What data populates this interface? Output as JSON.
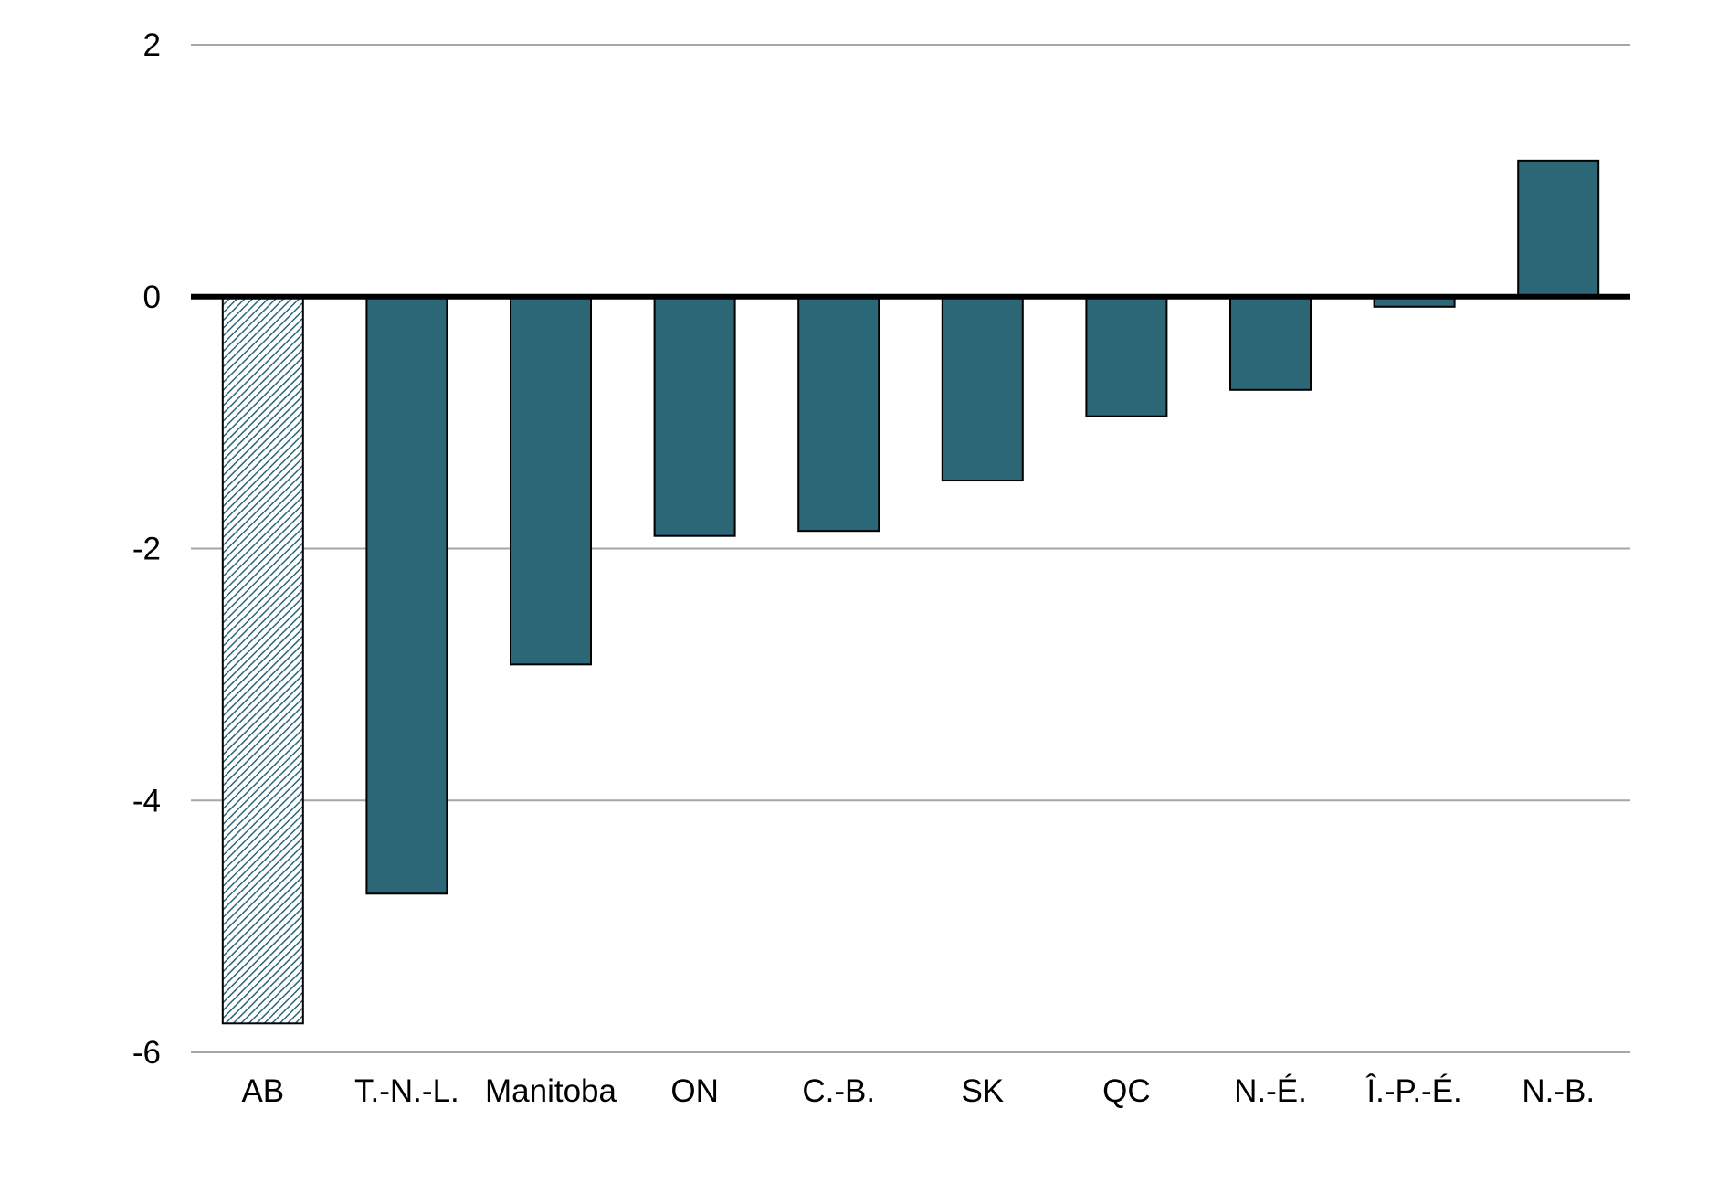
{
  "chart_data": {
    "type": "bar",
    "title": "",
    "xlabel": "",
    "ylabel": "",
    "categories": [
      "AB",
      "T.-N.-L.",
      "Manitoba",
      "ON",
      "C.-B.",
      "SK",
      "QC",
      "N.-É.",
      "Î.-P.-É.",
      "N.-B."
    ],
    "values": [
      -5.77,
      -4.74,
      -2.92,
      -1.9,
      -1.86,
      -1.46,
      -0.95,
      -0.74,
      -0.08,
      1.08
    ],
    "bar_styles": [
      "hatched",
      "solid",
      "solid",
      "solid",
      "solid",
      "solid",
      "solid",
      "solid",
      "solid",
      "solid"
    ],
    "ylim": [
      -6,
      2
    ],
    "yticks": [
      2,
      0,
      -2,
      -4,
      -6
    ],
    "ytick_labels": [
      "2",
      "0",
      "-2",
      "-4",
      "-6"
    ],
    "grid": true,
    "legend": "none",
    "colors": {
      "bar_fill": "#2b6777",
      "hatch_line": "#2b6777",
      "hatch_bg": "#ffffff",
      "bar_stroke": "#000000",
      "gridline": "#a6a6a6",
      "zero_line": "#000000"
    }
  }
}
